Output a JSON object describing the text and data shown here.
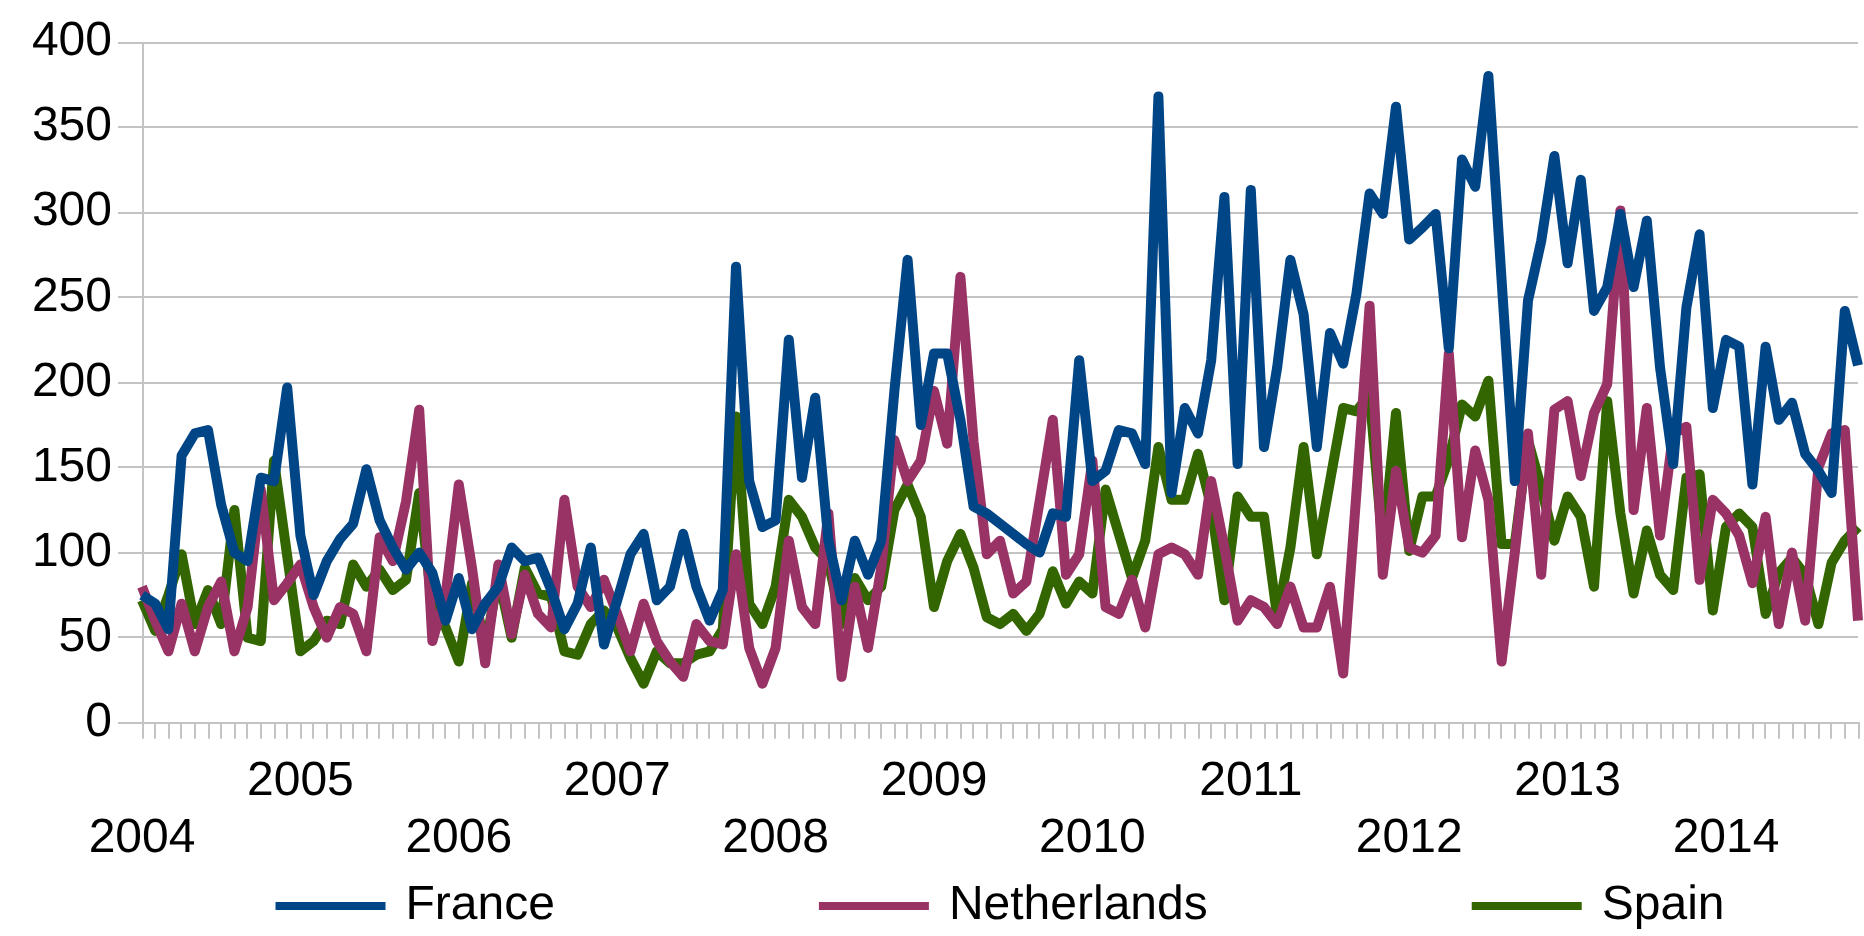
{
  "chart_data": {
    "type": "line",
    "categories": [
      "2004",
      null,
      null,
      null,
      null,
      null,
      null,
      null,
      null,
      null,
      null,
      null,
      "2005",
      null,
      null,
      null,
      null,
      null,
      null,
      null,
      null,
      null,
      null,
      null,
      "2006",
      null,
      null,
      null,
      null,
      null,
      null,
      null,
      null,
      null,
      null,
      null,
      "2007",
      null,
      null,
      null,
      null,
      null,
      null,
      null,
      null,
      null,
      null,
      null,
      "2008",
      null,
      null,
      null,
      null,
      null,
      null,
      null,
      null,
      null,
      null,
      null,
      "2009",
      null,
      null,
      null,
      null,
      null,
      null,
      null,
      null,
      null,
      null,
      null,
      "2010",
      null,
      null,
      null,
      null,
      null,
      null,
      null,
      null,
      null,
      null,
      null,
      "2011",
      null,
      null,
      null,
      null,
      null,
      null,
      null,
      null,
      null,
      null,
      null,
      "2012",
      null,
      null,
      null,
      null,
      null,
      null,
      null,
      null,
      null,
      null,
      null,
      "2013",
      null,
      null,
      null,
      null,
      null,
      null,
      null,
      null,
      null,
      null,
      null,
      "2014",
      null,
      null,
      null,
      null,
      null,
      null,
      null,
      null,
      null,
      null
    ],
    "series": [
      {
        "name": "France",
        "color": "#004586",
        "values": [
          75,
          70,
          55,
          157,
          170,
          172,
          128,
          100,
          95,
          144,
          142,
          197,
          110,
          75,
          95,
          108,
          117,
          149,
          119,
          103,
          90,
          100,
          88,
          60,
          85,
          55,
          70,
          80,
          103,
          95,
          97,
          78,
          55,
          70,
          103,
          46,
          72,
          99,
          111,
          72,
          80,
          111,
          80,
          60,
          78,
          268,
          142,
          115,
          119,
          225,
          144,
          191,
          107,
          72,
          107,
          87,
          107,
          195,
          272,
          175,
          217,
          217,
          178,
          127,
          123,
          117,
          111,
          105,
          100,
          123,
          121,
          213,
          142,
          148,
          172,
          170,
          152,
          368,
          135,
          185,
          170,
          213,
          309,
          152,
          313,
          162,
          209,
          272,
          240,
          162,
          229,
          211,
          252,
          311,
          299,
          362,
          284,
          291,
          299,
          220,
          331,
          315,
          380,
          260,
          142,
          248,
          283,
          333,
          270,
          319,
          242,
          256,
          299,
          256,
          295,
          209,
          152,
          244,
          287,
          185,
          225,
          221,
          140,
          221,
          178,
          188,
          158,
          148,
          135,
          242,
          210
        ]
      },
      {
        "name": "Netherlands",
        "color": "#993366",
        "values": [
          80,
          60,
          42,
          70,
          42,
          68,
          83,
          42,
          68,
          137,
          72,
          82,
          93,
          68,
          50,
          68,
          64,
          42,
          109,
          95,
          130,
          184,
          48,
          75,
          140,
          91,
          35,
          93,
          52,
          87,
          64,
          56,
          131,
          80,
          68,
          84,
          64,
          42,
          70,
          48,
          36,
          27,
          58,
          48,
          46,
          99,
          44,
          23,
          44,
          107,
          68,
          58,
          123,
          27,
          80,
          44,
          91,
          166,
          142,
          154,
          195,
          164,
          262,
          165,
          99,
          107,
          76,
          83,
          130,
          178,
          87,
          99,
          154,
          68,
          64,
          84,
          56,
          99,
          103,
          99,
          87,
          142,
          103,
          60,
          72,
          68,
          58,
          80,
          56,
          56,
          80,
          29,
          135,
          245,
          87,
          148,
          103,
          100,
          110,
          217,
          109,
          160,
          131,
          36,
          100,
          170,
          87,
          184,
          189,
          145,
          182,
          199,
          301,
          125,
          185,
          110,
          170,
          174,
          84,
          131,
          123,
          110,
          82,
          121,
          58,
          100,
          60,
          150,
          170,
          172,
          60
        ]
      },
      {
        "name": "Spain",
        "color": "#336600",
        "values": [
          72,
          54,
          75,
          99,
          58,
          78,
          58,
          125,
          50,
          48,
          154,
          98,
          42,
          48,
          60,
          58,
          93,
          80,
          90,
          78,
          84,
          135,
          68,
          56,
          36,
          82,
          44,
          86,
          50,
          91,
          76,
          74,
          42,
          40,
          58,
          66,
          56,
          38,
          23,
          42,
          35,
          35,
          40,
          42,
          55,
          180,
          70,
          58,
          80,
          131,
          121,
          103,
          95,
          58,
          85,
          72,
          80,
          125,
          140,
          121,
          68,
          95,
          111,
          91,
          62,
          58,
          64,
          54,
          64,
          89,
          70,
          83,
          76,
          137,
          111,
          85,
          107,
          162,
          131,
          131,
          158,
          127,
          72,
          133,
          121,
          121,
          62,
          103,
          162,
          99,
          142,
          185,
          183,
          193,
          103,
          182,
          101,
          133,
          133,
          155,
          187,
          180,
          201,
          105,
          105,
          166,
          138,
          107,
          133,
          121,
          80,
          189,
          123,
          76,
          113,
          87,
          78,
          144,
          146,
          66,
          115,
          123,
          115,
          64,
          88,
          97,
          87,
          58,
          94,
          107,
          115
        ]
      }
    ],
    "ylim": [
      0,
      400
    ],
    "yticks": [
      0,
      50,
      100,
      150,
      200,
      250,
      300,
      350,
      400
    ],
    "grid": "y",
    "legend": "bottom"
  }
}
